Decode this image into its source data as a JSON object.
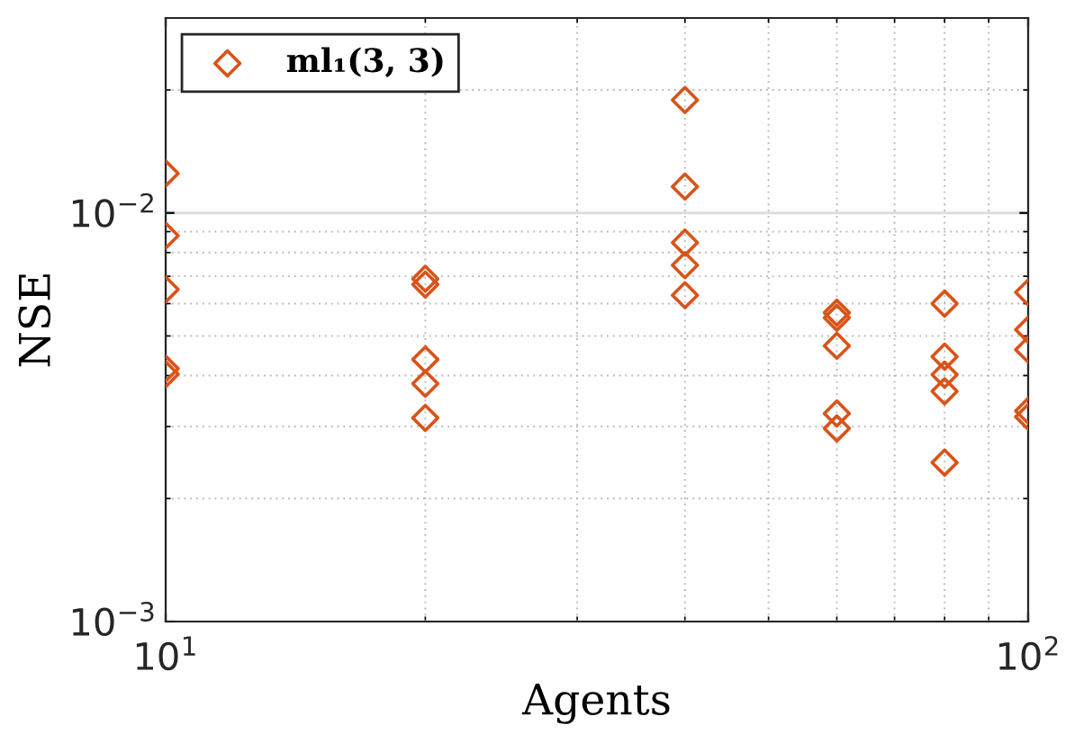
{
  "chart_data": {
    "type": "scatter",
    "xlabel": "Agents",
    "ylabel": "NSE",
    "log": "xy",
    "x": [
      10,
      10,
      10,
      10,
      10,
      20,
      20,
      20,
      20,
      20,
      40,
      40,
      40,
      40,
      40,
      60,
      60,
      60,
      60,
      60,
      80,
      80,
      80,
      80,
      80,
      100,
      100,
      100,
      100,
      100
    ],
    "series": [
      {
        "name": "ml₁(3, 3)",
        "color": "#d95319",
        "values": [
          0.0125,
          0.0088,
          0.0065,
          0.00416,
          0.00403,
          0.0069,
          0.00668,
          0.00438,
          0.00382,
          0.00315,
          0.0189,
          0.0116,
          0.00846,
          0.00745,
          0.00629,
          0.0057,
          0.00554,
          0.00473,
          0.00323,
          0.00297,
          0.006,
          0.00445,
          0.00402,
          0.00366,
          0.00245,
          0.00639,
          0.00518,
          0.00463,
          0.00328,
          0.00317
        ]
      }
    ],
    "xlim": [
      10,
      100
    ],
    "ylim": [
      0.001,
      0.03
    ],
    "xticks": [
      {
        "value": 10,
        "label": "10$^{1}$"
      },
      {
        "value": 100,
        "label": "10$^{2}$"
      }
    ],
    "yticks": [
      {
        "value": 0.001,
        "label": "10$^{−3}$"
      },
      {
        "value": 0.01,
        "label": "10$^{−2}$"
      }
    ],
    "marker": "diamond",
    "grid": true,
    "legend": "top left"
  }
}
